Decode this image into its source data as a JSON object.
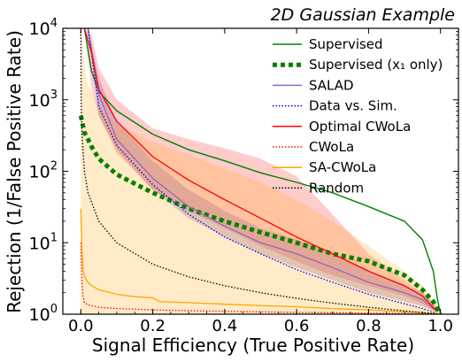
{
  "chart_data": {
    "type": "line",
    "title": "2D Gaussian Example",
    "xlabel": "Signal Efficiency (True Positive Rate)",
    "ylabel": "Rejection (1/False Positive Rate)",
    "xlim": [
      -0.05,
      1.05
    ],
    "ylim": [
      1,
      10000
    ],
    "yscale": "log",
    "grid": false,
    "legend_position": "top-right",
    "x_ticks": [
      {
        "v": 0.0,
        "label": "0.0"
      },
      {
        "v": 0.2,
        "label": "0.2"
      },
      {
        "v": 0.4,
        "label": "0.4"
      },
      {
        "v": 0.6,
        "label": "0.6"
      },
      {
        "v": 0.8,
        "label": "0.8"
      },
      {
        "v": 1.0,
        "label": "1.0"
      }
    ],
    "y_ticks": [
      {
        "v": 1,
        "base": "10",
        "exp": "0"
      },
      {
        "v": 10,
        "base": "10",
        "exp": "1"
      },
      {
        "v": 100,
        "base": "10",
        "exp": "2"
      },
      {
        "v": 1000,
        "base": "10",
        "exp": "3"
      },
      {
        "v": 10000,
        "base": "10",
        "exp": "4"
      }
    ],
    "bands": [
      {
        "series": "Optimal CWoLa",
        "color": "#ff0000",
        "opacity": 0.2,
        "x": [
          0.01,
          0.03,
          0.05,
          0.1,
          0.2,
          0.3,
          0.4,
          0.5,
          0.6,
          0.7,
          0.8,
          0.9,
          0.95,
          0.99
        ],
        "upper": [
          10000,
          8000,
          2800,
          1000,
          400,
          280,
          210,
          150,
          85,
          25,
          7,
          3,
          2,
          1.3
        ],
        "lower": [
          10000,
          1400,
          600,
          180,
          55,
          28,
          16,
          9,
          5.5,
          3.5,
          2.5,
          1.8,
          1.4,
          1.05
        ]
      },
      {
        "series": "SALAD",
        "color": "#6a3d9a",
        "opacity": 0.25,
        "x": [
          0.02,
          0.05,
          0.1,
          0.2,
          0.3,
          0.4,
          0.5,
          0.6,
          0.7,
          0.8,
          0.9,
          0.95,
          0.99
        ],
        "upper": [
          10000,
          2000,
          500,
          140,
          55,
          28,
          16,
          11,
          7,
          4,
          2.5,
          2,
          1.2
        ],
        "lower": [
          10000,
          600,
          200,
          55,
          22,
          12,
          7,
          4.5,
          3,
          2,
          1.5,
          1.3,
          1.05
        ]
      },
      {
        "series": "SA-CWoLa",
        "color": "#ffa500",
        "opacity": 0.22,
        "x": [
          0.0,
          0.01,
          0.02,
          0.05,
          0.1,
          0.2,
          0.3,
          0.4,
          0.5,
          0.6,
          0.7,
          0.8,
          0.9,
          0.95,
          0.98,
          1.0
        ],
        "upper": [
          10000,
          3000,
          1600,
          800,
          450,
          260,
          170,
          110,
          70,
          40,
          20,
          9,
          4,
          2.5,
          1.5,
          1.0
        ],
        "lower": [
          1.0,
          1.0,
          1.0,
          1.0,
          1.0,
          1.0,
          1.0,
          1.0,
          1.0,
          1.0,
          1.0,
          1.0,
          1.0,
          1.0,
          1.0,
          1.0
        ]
      }
    ],
    "series": [
      {
        "name": "Supervised",
        "color": "#008000",
        "style": "solid",
        "width": 1.4,
        "x": [
          0.01,
          0.02,
          0.03,
          0.05,
          0.1,
          0.2,
          0.3,
          0.4,
          0.5,
          0.6,
          0.7,
          0.8,
          0.9,
          0.95,
          0.98,
          0.99,
          1.0
        ],
        "y": [
          10000,
          5000,
          2500,
          1300,
          700,
          330,
          200,
          140,
          95,
          70,
          50,
          32,
          20,
          11,
          4,
          1.8,
          1.0
        ]
      },
      {
        "name": "Supervised (x₁ only)",
        "color": "#008000",
        "style": "dotted",
        "width": 5,
        "x": [
          0.0,
          0.01,
          0.02,
          0.03,
          0.05,
          0.1,
          0.2,
          0.3,
          0.4,
          0.5,
          0.6,
          0.7,
          0.8,
          0.9,
          0.95,
          0.98,
          1.0
        ],
        "y": [
          600,
          350,
          280,
          220,
          150,
          90,
          50,
          30,
          20,
          14,
          10,
          7,
          5.5,
          3.5,
          2.2,
          1.5,
          1.0
        ]
      },
      {
        "name": "SALAD",
        "color": "#9467bd",
        "style": "solid",
        "width": 1.3,
        "x": [
          0.02,
          0.05,
          0.1,
          0.2,
          0.3,
          0.4,
          0.5,
          0.6,
          0.7,
          0.8,
          0.9,
          0.95,
          0.99
        ],
        "y": [
          10000,
          1200,
          280,
          80,
          32,
          17,
          10,
          7,
          4.5,
          2.8,
          2.0,
          1.6,
          1.1
        ]
      },
      {
        "name": "Data vs. Sim.",
        "color": "#0000ff",
        "style": "dotted",
        "width": 1.3,
        "x": [
          0.02,
          0.05,
          0.1,
          0.2,
          0.3,
          0.4,
          0.5,
          0.6,
          0.7,
          0.8,
          0.9,
          0.95,
          0.99
        ],
        "y": [
          10000,
          800,
          230,
          65,
          25,
          12,
          7,
          4.2,
          2.8,
          1.9,
          1.4,
          1.2,
          1.02
        ]
      },
      {
        "name": "Optimal CWoLa",
        "color": "#ff0000",
        "style": "solid",
        "width": 1.3,
        "x": [
          0.01,
          0.03,
          0.05,
          0.1,
          0.2,
          0.3,
          0.4,
          0.5,
          0.6,
          0.7,
          0.8,
          0.9,
          0.95,
          0.99
        ],
        "y": [
          10000,
          4500,
          1400,
          500,
          160,
          75,
          40,
          22,
          12,
          7,
          4,
          2.5,
          1.8,
          1.1
        ]
      },
      {
        "name": "CWoLa",
        "color": "#ff0000",
        "style": "dotted",
        "width": 1.3,
        "x": [
          0.0,
          0.003,
          0.006,
          0.01,
          0.02,
          0.05,
          0.1,
          0.2,
          0.3,
          0.4,
          0.5,
          0.6,
          0.7,
          0.8,
          0.9,
          1.0
        ],
        "y": [
          10,
          3,
          1.8,
          1.45,
          1.35,
          1.25,
          1.2,
          1.15,
          1.12,
          1.1,
          1.08,
          1.06,
          1.05,
          1.03,
          1.02,
          1.0
        ]
      },
      {
        "name": "SA-CWoLa",
        "color": "#ffa500",
        "style": "solid",
        "width": 1.3,
        "x": [
          0.0,
          0.003,
          0.006,
          0.01,
          0.02,
          0.03,
          0.05,
          0.1,
          0.15,
          0.2,
          0.22,
          0.3,
          0.4,
          0.5,
          0.6,
          0.7,
          0.8,
          0.9,
          0.95,
          1.0
        ],
        "y": [
          30,
          8,
          4.2,
          3.4,
          2.8,
          2.5,
          2.2,
          1.9,
          1.75,
          1.7,
          1.5,
          1.45,
          1.38,
          1.32,
          1.27,
          1.2,
          1.15,
          1.08,
          1.05,
          1.0
        ]
      },
      {
        "name": "Random",
        "color": "#000000",
        "style": "dotted",
        "width": 1.3,
        "x": [
          0.0,
          0.0001,
          0.001,
          0.003,
          0.01,
          0.02,
          0.05,
          0.1,
          0.2,
          0.3,
          0.4,
          0.5,
          0.6,
          0.7,
          0.8,
          0.9,
          1.0
        ],
        "y": [
          10000,
          10000,
          1000,
          333,
          100,
          50,
          20,
          10,
          5,
          3.33,
          2.5,
          2,
          1.667,
          1.429,
          1.25,
          1.111,
          1.0
        ]
      }
    ],
    "legend": [
      {
        "label": "Supervised",
        "color": "#008000",
        "style": "solid"
      },
      {
        "label": "Supervised (x₁ only)",
        "color": "#008000",
        "style": "dotted-thick"
      },
      {
        "label": "SALAD",
        "color": "#9467bd",
        "style": "solid"
      },
      {
        "label": "Data vs. Sim.",
        "color": "#0000ff",
        "style": "dotted"
      },
      {
        "label": "Optimal CWoLa",
        "color": "#ff0000",
        "style": "solid"
      },
      {
        "label": "CWoLa",
        "color": "#ff0000",
        "style": "dotted"
      },
      {
        "label": "SA-CWoLa",
        "color": "#ffa500",
        "style": "solid"
      },
      {
        "label": "Random",
        "color": "#000000",
        "style": "dotted"
      }
    ]
  }
}
